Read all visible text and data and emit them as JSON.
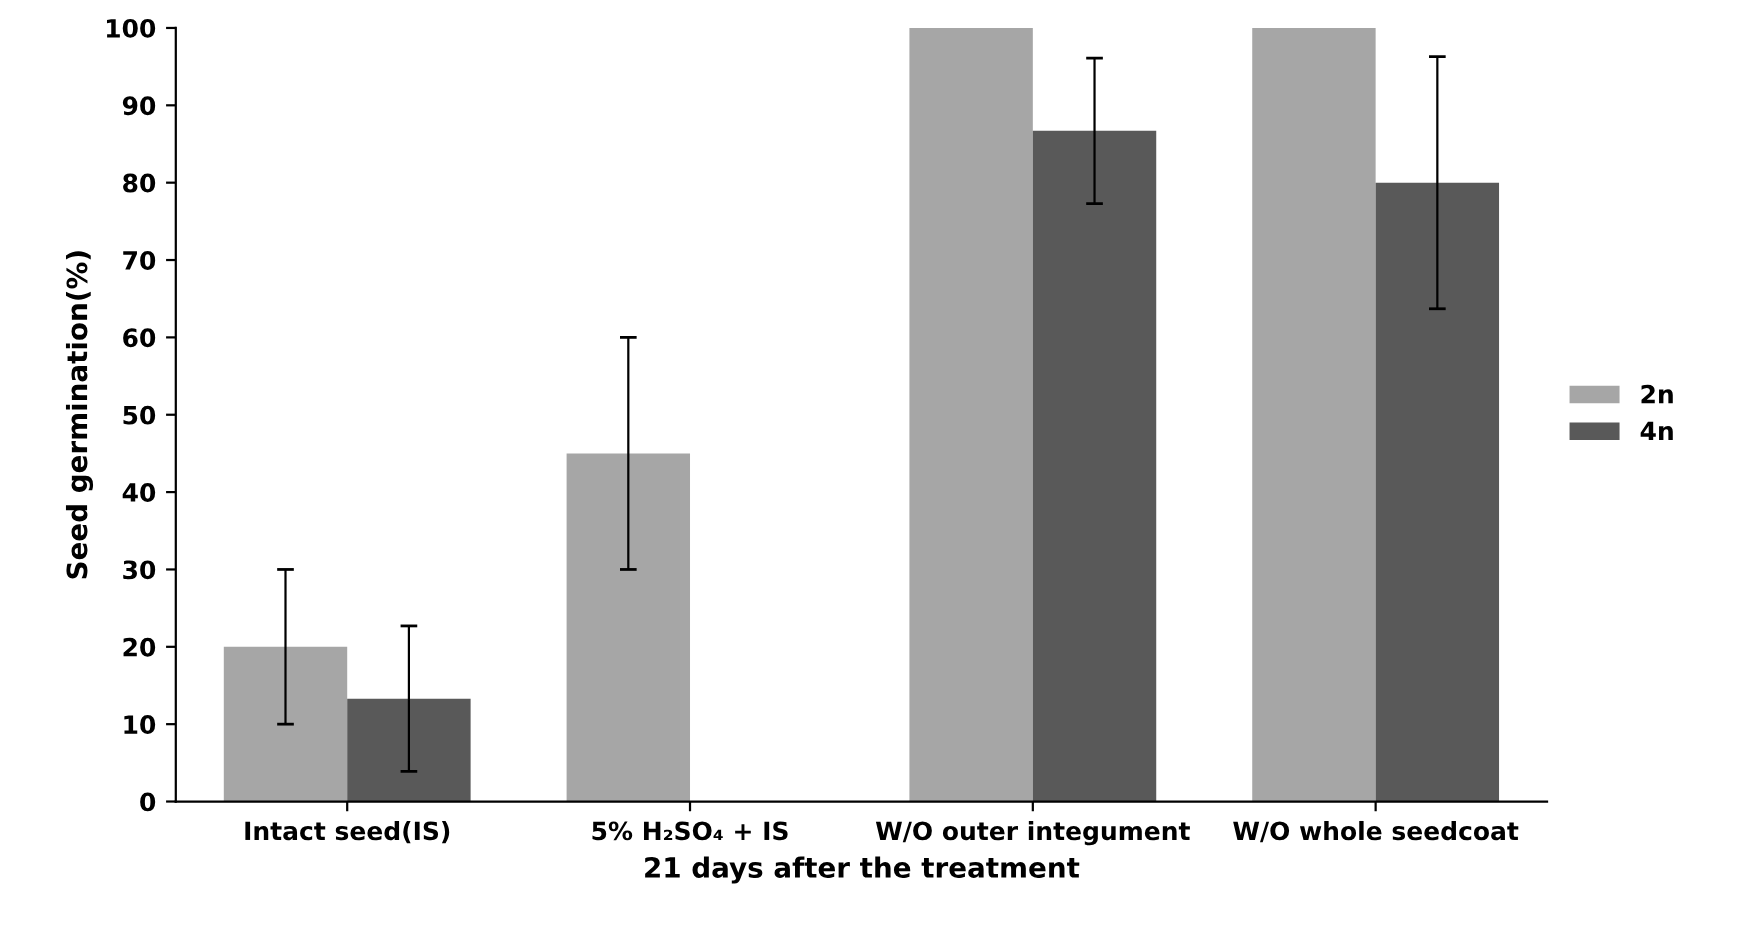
{
  "chart_data": {
    "type": "bar",
    "xlabel": "21 days after the treatment",
    "ylabel": "Seed germination(%)",
    "categories": [
      "Intact seed(IS)",
      "5% H₂SO₄ + IS",
      "W/O outer integument",
      "W/O whole seedcoat"
    ],
    "series": [
      {
        "name": "2n",
        "color": "#a6a6a6",
        "values": [
          20,
          45,
          100,
          100
        ],
        "errors": [
          10,
          15,
          null,
          null
        ]
      },
      {
        "name": "4n",
        "color": "#595959",
        "values": [
          13.3,
          null,
          86.7,
          80
        ],
        "errors": [
          9.4,
          null,
          9.4,
          16.3
        ]
      }
    ],
    "ylim": [
      0,
      100
    ],
    "yticks": [
      0,
      10,
      20,
      30,
      40,
      50,
      60,
      70,
      80,
      90,
      100
    ],
    "grid": false,
    "legend": "right"
  }
}
